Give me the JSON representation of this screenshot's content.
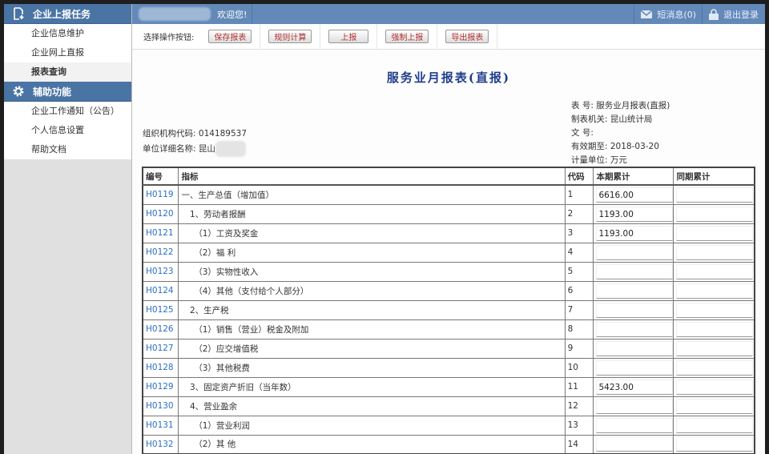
{
  "sidebar": {
    "sections": [
      {
        "title": "企业上报任务",
        "icon": "add-document-icon",
        "items": [
          "企业信息维护",
          "企业网上直报",
          "报表查询"
        ],
        "active": 2
      },
      {
        "title": "辅助功能",
        "icon": "gear-icon",
        "items": [
          "企业工作通知（公告）",
          "个人信息设置",
          "帮助文档"
        ],
        "active": -1
      }
    ]
  },
  "header": {
    "welcome": "欢迎您!",
    "messages": "短消息(0)",
    "logout": "退出登录"
  },
  "toolbar": {
    "label": "选择操作按钮:",
    "buttons": [
      "保存报表",
      "规则计算",
      "上报",
      "强制上报",
      "导出报表"
    ]
  },
  "report": {
    "title": "服务业月报表(直报)",
    "org_code_label": "组织机构代码:",
    "org_code": "014189537",
    "unit_name_label": "单位详细名称:",
    "unit_name": "昆山",
    "form_no": "表 号:  服务业月报表(直报)",
    "authority": "制表机关:  昆山统计局",
    "doc_no": "文 号:",
    "valid_until": "有效期至:  2018-03-20",
    "unit": "计量单位: 万元"
  },
  "table": {
    "headers": [
      "编号",
      "指标",
      "代码",
      "本期累计",
      "同期累计"
    ],
    "rows": [
      [
        "H0119",
        "一、生产总值（增加值）",
        "1",
        "6616.00",
        ""
      ],
      [
        "H0120",
        "　1、劳动者报酬",
        "2",
        "1193.00",
        ""
      ],
      [
        "H0121",
        "　　（1）工资及奖金",
        "3",
        "1193.00",
        ""
      ],
      [
        "H0122",
        "　　（2）福  利",
        "4",
        "",
        ""
      ],
      [
        "H0123",
        "　　（3）实物性收入",
        "5",
        "",
        ""
      ],
      [
        "H0124",
        "　　（4）其他（支付给个人部分）",
        "6",
        "",
        ""
      ],
      [
        "H0125",
        "　2、生产税",
        "7",
        "",
        ""
      ],
      [
        "H0126",
        "　　（1）销售（营业）税金及附加",
        "8",
        "",
        ""
      ],
      [
        "H0127",
        "　　（2）应交增值税",
        "9",
        "",
        ""
      ],
      [
        "H0128",
        "　　（3）其他税费",
        "10",
        "",
        ""
      ],
      [
        "H0129",
        "　3、固定资产折旧（当年数）",
        "11",
        "5423.00",
        ""
      ],
      [
        "H0130",
        "　4、营业盈余",
        "12",
        "",
        ""
      ],
      [
        "H0131",
        "　　（1）营业利润",
        "13",
        "",
        ""
      ],
      [
        "H0132",
        "　　（2）其  他",
        "14",
        "",
        ""
      ]
    ]
  }
}
